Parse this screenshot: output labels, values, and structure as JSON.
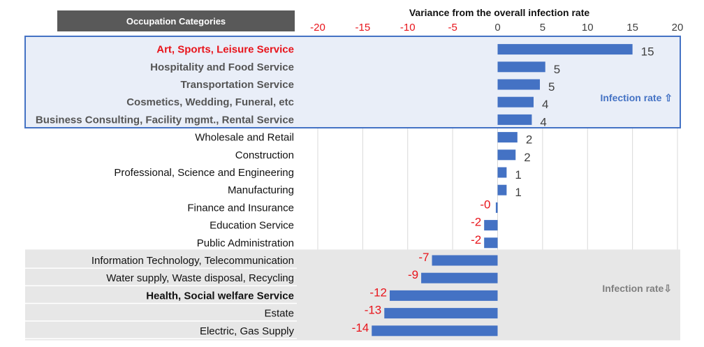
{
  "header": {
    "category_column_title": "Occupation Categories"
  },
  "annotations": {
    "up": "Infection  rate ⇧",
    "down": "Infection  rate⇩"
  },
  "colors": {
    "bar": "#4472c4",
    "positive_label": "#404040",
    "negative_label": "#e8141b",
    "tick_negative": "#e8141b",
    "tick_positive": "#404040",
    "highlight_top_fill": "#e9eef8",
    "highlight_top_border": "#4472c4",
    "highlight_bottom_fill": "#e7e7e7",
    "header_fill": "#595959",
    "gridline": "#d9d9d9"
  },
  "chart_data": {
    "type": "bar",
    "orientation": "horizontal",
    "title": "Variance from the overall infection rate",
    "xlim": [
      -20,
      20
    ],
    "xticks": [
      "-20",
      "-15",
      "-10",
      "-5",
      "0",
      "5",
      "10",
      "15",
      "20"
    ],
    "grid": true,
    "categories": [
      "Art, Sports, Leisure Service",
      "Hospitality and Food Service",
      "Transportation Service",
      "Cosmetics, Wedding, Funeral, etc",
      "Business Consulting, Facility mgmt., Rental Service",
      "Wholesale and Retail",
      "Construction",
      "Professional, Science and Engineering",
      "Manufacturing",
      "Finance and Insurance",
      "Education Service",
      "Public Administration",
      "Information Technology, Telecommunication",
      "Water supply, Waste disposal, Recycling",
      "Health, Social welfare Service",
      "Estate",
      "Electric, Gas Supply"
    ],
    "category_styles": [
      "red",
      "bold",
      "bold",
      "bold",
      "bold",
      "normal",
      "normal",
      "normal",
      "normal",
      "normal",
      "normal",
      "normal",
      "normal",
      "normal",
      "black-bold",
      "normal",
      "normal"
    ],
    "values": [
      15,
      5.3,
      4.7,
      4,
      3.8,
      2.2,
      2,
      1,
      1,
      -0.2,
      -1.5,
      -1.5,
      -7.3,
      -8.5,
      -12,
      -12.6,
      -14
    ],
    "data_labels": [
      "15",
      "5",
      "5",
      "4",
      "4",
      "2",
      "2",
      "1",
      "1",
      "-0",
      "-2",
      "-2",
      "-7",
      "-9",
      "-12",
      "-13",
      "-14"
    ],
    "groups": [
      {
        "label": "Infection  rate ⇧",
        "from": 0,
        "to": 4
      },
      {
        "label": "Infection  rate⇩",
        "from": 12,
        "to": 16
      }
    ]
  }
}
